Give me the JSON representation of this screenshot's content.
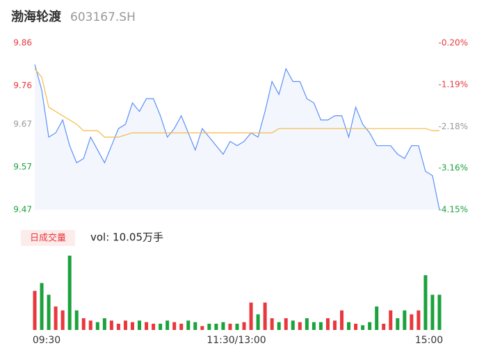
{
  "header": {
    "name": "渤海轮渡",
    "code": "603167.SH"
  },
  "chart_data": {
    "type": "intraday",
    "ylim": [
      9.47,
      9.86
    ],
    "yticks": [
      9.86,
      9.76,
      9.67,
      9.57,
      9.47
    ],
    "y2lim": [
      -0.2,
      -4.15
    ],
    "y2ticks": [
      {
        "value": -0.2,
        "label": "-0.20%"
      },
      {
        "value": -1.19,
        "label": "-1.19%"
      },
      {
        "value": -2.18,
        "label": "-2.18%"
      },
      {
        "value": -3.16,
        "label": "-3.16%"
      },
      {
        "value": -4.15,
        "label": "-4.15%"
      }
    ],
    "ytick_colors": [
      "#e8383d",
      "#e8383d",
      "#999999",
      "#1ba23c",
      "#1ba23c"
    ],
    "x_labels": [
      "09:30",
      "11:30/13:00",
      "15:00"
    ],
    "series": [
      {
        "name": "price",
        "color": "#5b8ff9",
        "values": [
          9.81,
          9.75,
          9.64,
          9.65,
          9.68,
          9.62,
          9.58,
          9.59,
          9.64,
          9.61,
          9.58,
          9.62,
          9.66,
          9.67,
          9.72,
          9.7,
          9.73,
          9.73,
          9.69,
          9.64,
          9.66,
          9.69,
          9.65,
          9.61,
          9.66,
          9.64,
          9.62,
          9.6,
          9.63,
          9.62,
          9.63,
          9.65,
          9.64,
          9.7,
          9.77,
          9.74,
          9.8,
          9.77,
          9.77,
          9.73,
          9.72,
          9.68,
          9.68,
          9.69,
          9.69,
          9.64,
          9.71,
          9.67,
          9.65,
          9.62,
          9.62,
          9.62,
          9.6,
          9.59,
          9.62,
          9.62,
          9.56,
          9.55,
          9.47
        ]
      },
      {
        "name": "avg",
        "color": "#f5b942",
        "values": [
          9.8,
          9.78,
          9.71,
          9.7,
          9.69,
          9.68,
          9.67,
          9.655,
          9.655,
          9.655,
          9.64,
          9.64,
          9.64,
          9.645,
          9.65,
          9.65,
          9.65,
          9.65,
          9.65,
          9.65,
          9.65,
          9.65,
          9.65,
          9.65,
          9.65,
          9.65,
          9.65,
          9.65,
          9.65,
          9.65,
          9.65,
          9.65,
          9.65,
          9.65,
          9.65,
          9.66,
          9.66,
          9.66,
          9.66,
          9.66,
          9.66,
          9.66,
          9.66,
          9.66,
          9.66,
          9.66,
          9.66,
          9.66,
          9.66,
          9.66,
          9.66,
          9.66,
          9.66,
          9.66,
          9.66,
          9.66,
          9.66,
          9.655,
          9.655
        ]
      }
    ],
    "volume": {
      "legend": "日成交量",
      "label": "vol: 10.05万手",
      "up_color": "#e8383d",
      "down_color": "#1ba23c",
      "values": [
        2000,
        2400,
        1800,
        1200,
        1000,
        3800,
        1000,
        600,
        480,
        400,
        600,
        480,
        320,
        480,
        400,
        480,
        400,
        320,
        320,
        480,
        400,
        320,
        480,
        400,
        200,
        320,
        320,
        400,
        320,
        320,
        400,
        1400,
        800,
        1400,
        600,
        400,
        600,
        480,
        400,
        600,
        400,
        400,
        600,
        480,
        1000,
        400,
        320,
        240,
        400,
        1200,
        320,
        1000,
        600,
        1000,
        800,
        1000,
        2800,
        1800,
        1800
      ]
    }
  }
}
